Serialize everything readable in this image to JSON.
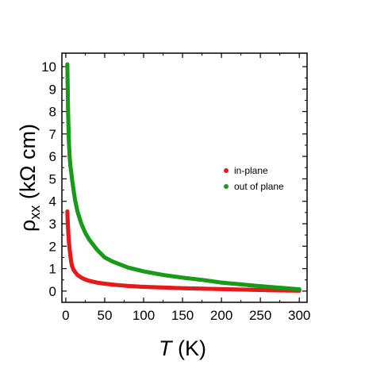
{
  "chart_data": {
    "type": "scatter",
    "xlabel": {
      "symbol": "T",
      "unit": " (K)"
    },
    "ylabel": {
      "symbol": "ρ",
      "subscript": "xx",
      "unit": " (kΩ cm)"
    },
    "xlim": [
      -5,
      310
    ],
    "ylim": [
      -0.5,
      10.6
    ],
    "xticks": [
      0,
      50,
      100,
      150,
      200,
      250,
      300
    ],
    "yticks": [
      0,
      1,
      2,
      3,
      4,
      5,
      6,
      7,
      8,
      9,
      10
    ],
    "x_tick_labels": [
      "0",
      "50",
      "100",
      "150",
      "200",
      "250",
      "300"
    ],
    "y_tick_labels": [
      "0",
      "1",
      "2",
      "3",
      "4",
      "5",
      "6",
      "7",
      "8",
      "9",
      "10"
    ],
    "grid": false,
    "legend_position": "right",
    "series": [
      {
        "name": "in-plane",
        "color": "#e41a1c",
        "points": [
          [
            2,
            3.55
          ],
          [
            2.5,
            3.1
          ],
          [
            3,
            2.75
          ],
          [
            3.5,
            2.45
          ],
          [
            4,
            2.2
          ],
          [
            5,
            1.85
          ],
          [
            6,
            1.55
          ],
          [
            7,
            1.3
          ],
          [
            8,
            1.12
          ],
          [
            10,
            0.95
          ],
          [
            12,
            0.85
          ],
          [
            15,
            0.72
          ],
          [
            20,
            0.6
          ],
          [
            25,
            0.52
          ],
          [
            30,
            0.46
          ],
          [
            40,
            0.38
          ],
          [
            50,
            0.33
          ],
          [
            60,
            0.29
          ],
          [
            80,
            0.23
          ],
          [
            100,
            0.19
          ],
          [
            125,
            0.16
          ],
          [
            150,
            0.13
          ],
          [
            175,
            0.11
          ],
          [
            200,
            0.09
          ],
          [
            225,
            0.07
          ],
          [
            250,
            0.05
          ],
          [
            275,
            0.03
          ],
          [
            300,
            0.02
          ]
        ]
      },
      {
        "name": "out of plane",
        "color": "#1a9a1a",
        "points": [
          [
            2,
            10.1
          ],
          [
            3,
            7.95
          ],
          [
            4,
            6.65
          ],
          [
            5,
            5.95
          ],
          [
            6,
            5.55
          ],
          [
            7,
            5.3
          ],
          [
            8,
            5.0
          ],
          [
            9,
            4.75
          ],
          [
            10,
            4.5
          ],
          [
            12,
            4.05
          ],
          [
            15,
            3.55
          ],
          [
            20,
            3.0
          ],
          [
            25,
            2.6
          ],
          [
            30,
            2.3
          ],
          [
            40,
            1.85
          ],
          [
            50,
            1.5
          ],
          [
            60,
            1.32
          ],
          [
            80,
            1.05
          ],
          [
            100,
            0.88
          ],
          [
            125,
            0.72
          ],
          [
            150,
            0.6
          ],
          [
            175,
            0.5
          ],
          [
            200,
            0.38
          ],
          [
            225,
            0.3
          ],
          [
            250,
            0.22
          ],
          [
            275,
            0.15
          ],
          [
            300,
            0.08
          ]
        ]
      }
    ]
  }
}
